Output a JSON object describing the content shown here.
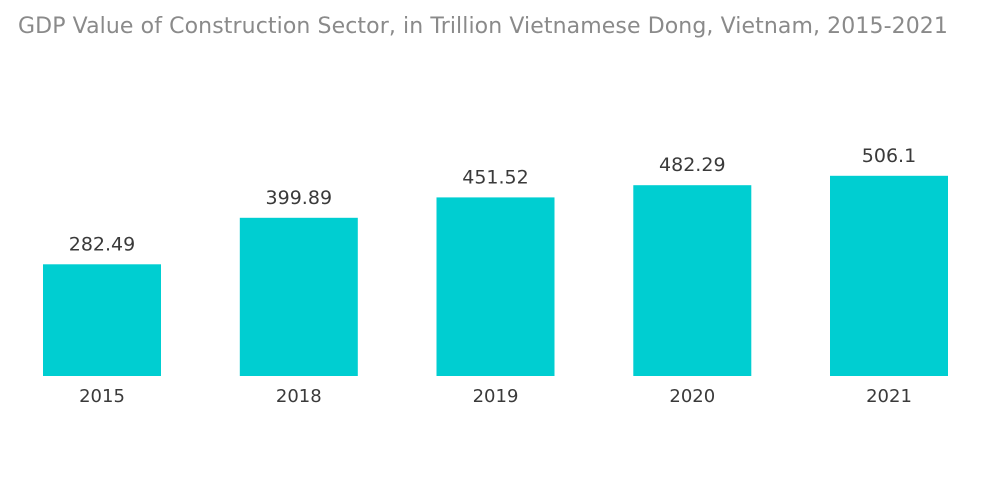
{
  "chart_data": {
    "type": "bar",
    "title": "GDP Value of Construction Sector, in Trillion Vietnamese Dong, Vietnam,  2015-2021",
    "categories": [
      "2015",
      "2018",
      "2019",
      "2020",
      "2021"
    ],
    "values": [
      282.49,
      399.89,
      451.52,
      482.29,
      506.1
    ],
    "value_labels": [
      "282.49",
      "399.89",
      "451.52",
      "482.29",
      "506.1"
    ],
    "xlabel": "",
    "ylabel": "",
    "ylim": [
      0,
      700
    ],
    "grid": false,
    "legend": "none",
    "bar_color": "#00CED1"
  }
}
